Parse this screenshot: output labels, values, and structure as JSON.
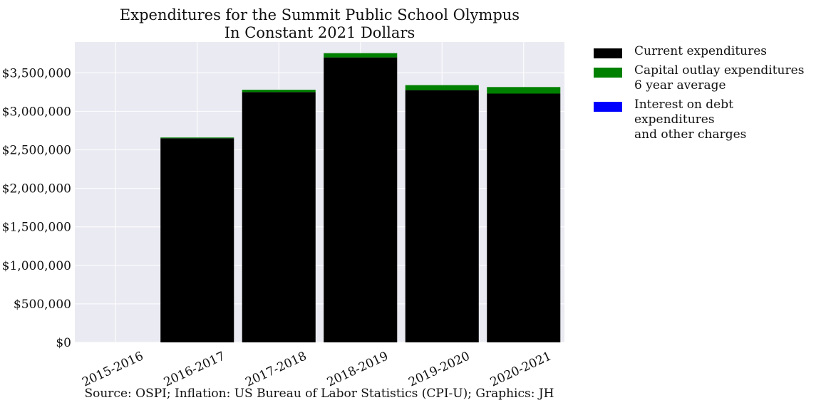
{
  "chart_data": {
    "type": "bar",
    "stacked": true,
    "title": "Expenditures for the Summit Public School Olympus\nIn Constant 2021 Dollars",
    "categories": [
      "2015-2016",
      "2016-2017",
      "2017-2018",
      "2018-2019",
      "2019-2020",
      "2020-2021"
    ],
    "series": [
      {
        "name": "Current expenditures",
        "color": "#000000",
        "values": [
          0,
          2650000,
          3250000,
          3700000,
          3275000,
          3230000
        ]
      },
      {
        "name": "Capital outlay expenditures\n6 year average",
        "color": "#008000",
        "values": [
          0,
          10000,
          30000,
          55000,
          65000,
          85000
        ]
      },
      {
        "name": "Interest on debt expenditures\nand other charges",
        "color": "#0000ff",
        "values": [
          0,
          0,
          0,
          0,
          0,
          0
        ]
      }
    ],
    "ylim": [
      0,
      3900000
    ],
    "yticks": [
      0,
      500000,
      1000000,
      1500000,
      2000000,
      2500000,
      3000000,
      3500000
    ],
    "ytick_labels": [
      "$0",
      "$500,000",
      "$1,000,000",
      "$1,500,000",
      "$2,000,000",
      "$2,500,000",
      "$3,000,000",
      "$3,500,000"
    ],
    "xlabel": "",
    "ylabel": "",
    "grid": true,
    "legend_position": "outside-right-top"
  },
  "source_text": "Source: OSPI; Inflation: US Bureau of Labor Statistics (CPI-U); Graphics: JH"
}
